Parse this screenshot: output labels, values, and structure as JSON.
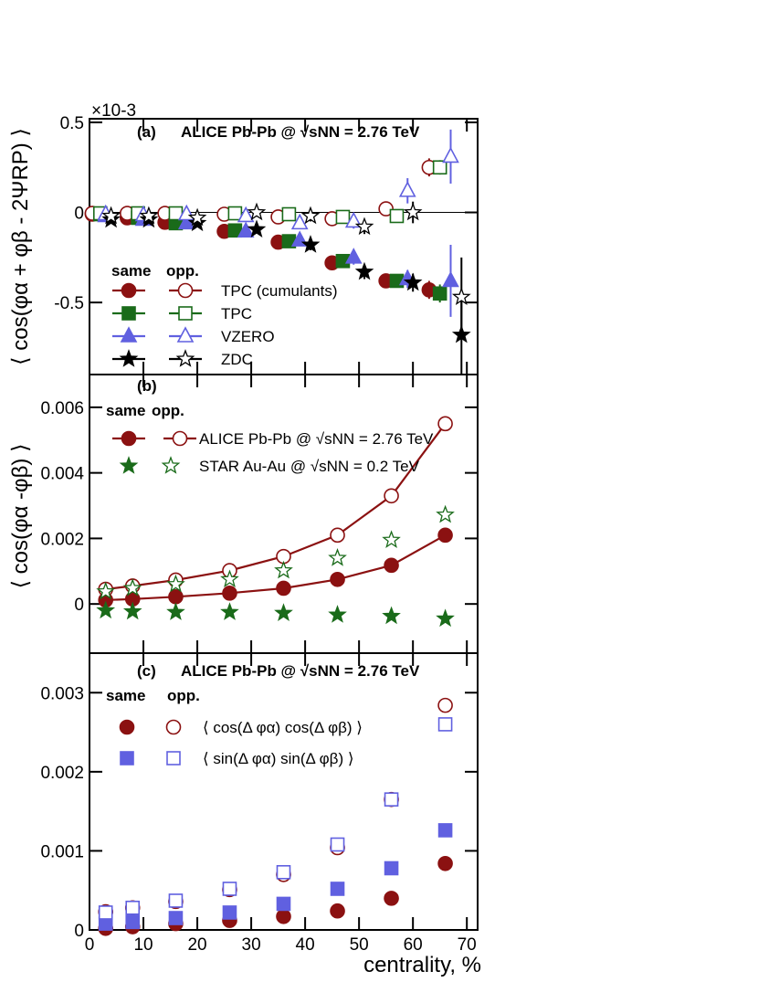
{
  "colors": {
    "red": "#8b1111",
    "green": "#1a6b1a",
    "blue": "#6060e0",
    "black": "#000000"
  },
  "x_axis": {
    "label": "centrality, %",
    "ticks": [
      "0",
      "10",
      "20",
      "30",
      "40",
      "50",
      "60",
      "70"
    ],
    "range": [
      0,
      72
    ]
  },
  "chart_data": [
    {
      "type": "scatter",
      "panel": "(a)",
      "title": "ALICE Pb-Pb @ √sNN = 2.76 TeV",
      "ylabel": "⟨ cos(φα + φβ - 2ΨRP) ⟩",
      "exponent": "×10-3",
      "ylim": [
        -0.9,
        0.52
      ],
      "ytick_labels": [
        "0.5",
        "0",
        "-0.5"
      ],
      "ytick_values": [
        0.5,
        0,
        -0.5
      ],
      "legend_header": {
        "same": "same",
        "opp": "opp."
      },
      "legend": [
        "TPC (cumulants)",
        "TPC",
        "VZERO",
        "ZDC"
      ],
      "series": [
        {
          "name": "TPC (cumulants) same",
          "color": "red",
          "marker": "circle",
          "fill": true,
          "x": [
            0.5,
            7,
            14,
            25,
            35,
            45,
            55,
            63
          ],
          "y": [
            -0.01,
            -0.03,
            -0.055,
            -0.105,
            -0.165,
            -0.28,
            -0.38,
            -0.43
          ],
          "err": [
            0.02,
            0.02,
            0.02,
            0.02,
            0.02,
            0.02,
            0.02,
            0.05
          ]
        },
        {
          "name": "TPC (cumulants) opp",
          "color": "red",
          "marker": "circle",
          "fill": false,
          "x": [
            0.5,
            7,
            14,
            25,
            35,
            45,
            55,
            63
          ],
          "y": [
            -0.005,
            -0.005,
            -0.005,
            -0.01,
            -0.025,
            -0.035,
            0.02,
            0.25
          ],
          "err": [
            0.02,
            0.02,
            0.02,
            0.02,
            0.02,
            0.02,
            0.02,
            0.05
          ]
        },
        {
          "name": "TPC same",
          "color": "green",
          "marker": "square",
          "fill": true,
          "x": [
            2,
            9,
            16,
            27,
            37,
            47,
            57,
            65
          ],
          "y": [
            -0.01,
            -0.03,
            -0.06,
            -0.1,
            -0.16,
            -0.27,
            -0.38,
            -0.45
          ],
          "err": [
            0.02,
            0.02,
            0.02,
            0.02,
            0.02,
            0.02,
            0.02,
            0.05
          ]
        },
        {
          "name": "TPC opp",
          "color": "green",
          "marker": "square",
          "fill": false,
          "x": [
            2,
            9,
            16,
            27,
            37,
            47,
            57,
            65
          ],
          "y": [
            -0.005,
            -0.005,
            -0.005,
            -0.005,
            -0.01,
            -0.025,
            -0.02,
            0.25
          ],
          "err": [
            0.02,
            0.02,
            0.02,
            0.02,
            0.02,
            0.02,
            0.02,
            0.04
          ]
        },
        {
          "name": "VZERO same",
          "color": "blue",
          "marker": "triangle",
          "fill": true,
          "x": [
            3,
            10,
            18,
            29,
            39,
            49,
            59,
            67
          ],
          "y": [
            -0.02,
            -0.04,
            -0.06,
            -0.105,
            -0.155,
            -0.25,
            -0.37,
            -0.38
          ],
          "err": [
            0.02,
            0.02,
            0.02,
            0.02,
            0.03,
            0.04,
            0.05,
            0.2
          ]
        },
        {
          "name": "VZERO opp",
          "color": "blue",
          "marker": "triangle",
          "fill": false,
          "x": [
            3,
            10,
            18,
            29,
            39,
            49,
            59,
            67
          ],
          "y": [
            -0.01,
            -0.015,
            -0.01,
            -0.02,
            -0.06,
            -0.05,
            0.12,
            0.31
          ],
          "err": [
            0.02,
            0.02,
            0.02,
            0.02,
            0.03,
            0.04,
            0.07,
            0.15
          ]
        },
        {
          "name": "ZDC same",
          "color": "black",
          "marker": "star",
          "fill": true,
          "x": [
            4,
            11,
            20,
            31,
            41,
            51,
            60,
            69
          ],
          "y": [
            -0.04,
            -0.04,
            -0.06,
            -0.095,
            -0.18,
            -0.33,
            -0.39,
            -0.68
          ],
          "err": [
            0.02,
            0.02,
            0.02,
            0.02,
            0.03,
            0.04,
            0.05,
            0.22
          ]
        },
        {
          "name": "ZDC opp",
          "color": "black",
          "marker": "star",
          "fill": false,
          "x": [
            4,
            11,
            20,
            31,
            41,
            51,
            60,
            69
          ],
          "y": [
            -0.02,
            -0.02,
            -0.03,
            0.0,
            -0.02,
            -0.08,
            0.0,
            -0.47
          ],
          "err": [
            0.02,
            0.02,
            0.02,
            0.02,
            0.03,
            0.04,
            0.06,
            0.22
          ]
        }
      ]
    },
    {
      "type": "line",
      "panel": "(b)",
      "title": "",
      "ylabel": "⟨ cos(φα -φβ) ⟩",
      "ylim": [
        -0.0015,
        0.007
      ],
      "ytick_labels": [
        "0.006",
        "0.004",
        "0.002",
        "0"
      ],
      "ytick_values": [
        0.006,
        0.004,
        0.002,
        0
      ],
      "legend_header": {
        "same": "same",
        "opp": "opp."
      },
      "legend": [
        "ALICE Pb-Pb @ √sNN = 2.76 TeV",
        "STAR Au-Au @ √sNN = 0.2 TeV"
      ],
      "series": [
        {
          "name": "ALICE same",
          "color": "red",
          "marker": "circle",
          "fill": true,
          "line": true,
          "x": [
            3,
            8,
            16,
            26,
            36,
            46,
            56,
            66
          ],
          "y": [
            0.00012,
            0.00015,
            0.00022,
            0.00033,
            0.00048,
            0.00075,
            0.00118,
            0.0021
          ]
        },
        {
          "name": "ALICE opp",
          "color": "red",
          "marker": "circle",
          "fill": false,
          "line": true,
          "x": [
            3,
            8,
            16,
            26,
            36,
            46,
            56,
            66
          ],
          "y": [
            0.00045,
            0.00055,
            0.00073,
            0.00102,
            0.00145,
            0.0021,
            0.0033,
            0.0055
          ]
        },
        {
          "name": "STAR same",
          "color": "green",
          "marker": "star",
          "fill": true,
          "line": false,
          "x": [
            3,
            8,
            16,
            26,
            36,
            46,
            56,
            66
          ],
          "y": [
            -0.0002,
            -0.00023,
            -0.00025,
            -0.00025,
            -0.00028,
            -0.00033,
            -0.00037,
            -0.00045
          ]
        },
        {
          "name": "STAR opp",
          "color": "green",
          "marker": "star",
          "fill": false,
          "line": false,
          "x": [
            3,
            8,
            16,
            26,
            36,
            46,
            56,
            66
          ],
          "y": [
            0.00038,
            0.00048,
            0.0006,
            0.00075,
            0.00102,
            0.0014,
            0.00195,
            0.00272
          ]
        }
      ]
    },
    {
      "type": "scatter",
      "panel": "(c)",
      "title": "ALICE Pb-Pb @ √sNN = 2.76 TeV",
      "ylabel": "",
      "ylim": [
        0,
        0.0035
      ],
      "ytick_labels": [
        "0.003",
        "0.002",
        "0.001",
        "0"
      ],
      "ytick_values": [
        0.003,
        0.002,
        0.001,
        0
      ],
      "legend_header": {
        "same": "same",
        "opp": "opp."
      },
      "legend": [
        "⟨ cos(Δ φα) cos(Δ φβ) ⟩",
        "⟨ sin(Δ φα) sin(Δ φβ) ⟩"
      ],
      "series": [
        {
          "name": "cos cos same",
          "color": "red",
          "marker": "circle",
          "fill": true,
          "x": [
            3,
            8,
            16,
            26,
            36,
            46,
            56,
            66
          ],
          "y": [
            2e-05,
            4e-05,
            8e-05,
            0.00012,
            0.00017,
            0.00024,
            0.0004,
            0.00084
          ]
        },
        {
          "name": "cos cos opp",
          "color": "red",
          "marker": "circle",
          "fill": false,
          "x": [
            3,
            8,
            16,
            26,
            36,
            46,
            56,
            66
          ],
          "y": [
            0.00023,
            0.00028,
            0.00036,
            0.00051,
            0.0007,
            0.00104,
            0.00165,
            0.00284
          ]
        },
        {
          "name": "sin sin same",
          "color": "blue",
          "marker": "square",
          "fill": true,
          "x": [
            3,
            8,
            16,
            26,
            36,
            46,
            56,
            66
          ],
          "y": [
            8e-05,
            0.0001,
            0.00015,
            0.00022,
            0.00033,
            0.00052,
            0.00078,
            0.00126
          ]
        },
        {
          "name": "sin sin opp",
          "color": "blue",
          "marker": "square",
          "fill": false,
          "x": [
            3,
            8,
            16,
            26,
            36,
            46,
            56,
            66
          ],
          "y": [
            0.00022,
            0.00028,
            0.00037,
            0.00052,
            0.00073,
            0.00108,
            0.00165,
            0.0026
          ]
        }
      ]
    }
  ]
}
